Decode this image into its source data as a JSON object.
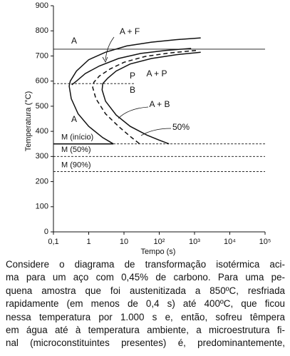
{
  "chart_data": {
    "type": "line",
    "xscale": "log",
    "xlabel": "Tempo (s)",
    "ylabel": "Temperatura (°C)",
    "xlim": [
      0.1,
      100000
    ],
    "ylim": [
      0,
      900
    ],
    "xticks": [
      {
        "value": 0.1,
        "label": "0,1"
      },
      1,
      10,
      {
        "value": 100,
        "label": "10²"
      },
      {
        "value": 1000,
        "label": "10³"
      },
      {
        "value": 10000,
        "label": "10⁴"
      },
      {
        "value": 100000,
        "label": "10⁵"
      }
    ],
    "yticks": [
      0,
      100,
      200,
      300,
      400,
      500,
      600,
      700,
      800,
      900
    ],
    "color": "#111111",
    "series": [
      {
        "style": "solid",
        "x": [
          1500,
          300,
          60,
          12,
          3,
          1,
          0.45,
          0.3,
          0.28,
          0.32,
          0.5,
          1,
          2.5,
          5
        ],
        "values": [
          772,
          765,
          755,
          740,
          715,
          685,
          640,
          600,
          580,
          530,
          470,
          420,
          375,
          350
        ]
      },
      {
        "style": "solid",
        "x": [
          800,
          150,
          30,
          7,
          2,
          0.8,
          0.45,
          0.33
        ],
        "values": [
          730,
          722,
          710,
          690,
          660,
          630,
          600,
          585
        ]
      },
      {
        "style": "dashed",
        "x": [
          1100,
          200,
          40,
          10,
          4,
          2,
          1.4,
          1.3,
          1.6,
          3,
          7,
          15,
          28
        ],
        "values": [
          722,
          712,
          698,
          675,
          648,
          620,
          595,
          575,
          530,
          470,
          420,
          380,
          350
        ]
      },
      {
        "style": "solid",
        "x": [
          1500,
          300,
          60,
          15,
          6,
          3.5,
          2.5,
          2.4,
          3,
          6,
          15,
          45,
          100,
          190
        ],
        "values": [
          715,
          705,
          690,
          668,
          640,
          612,
          590,
          565,
          520,
          465,
          420,
          385,
          365,
          350
        ]
      }
    ],
    "hlines": [
      {
        "value": 727,
        "style": "solid"
      },
      {
        "value": 590,
        "style": "dashed"
      },
      {
        "value": 350,
        "style": "dashed",
        "label": "M (início)"
      },
      {
        "value": 300,
        "style": "dashed",
        "label": "M (50%)"
      },
      {
        "value": 240,
        "style": "dashed",
        "label": "M (90%)"
      }
    ],
    "ms_solid_to": 5,
    "annotations": [
      "A",
      "A + F",
      "P",
      "A + P",
      "B",
      "A + B",
      "50%",
      "A"
    ]
  },
  "question": {
    "lines": [
      "Considere o diagrama de transformação isotérmica aci-",
      "ma para um aço com 0,45% de carbono. Para uma pe-",
      "quena amostra que foi austenitizada a 850ºC, resfriada",
      "rapidamente (em menos de 0,4 s) até 400ºC, que ficou",
      "nessa temperatura por 1.000 s e, então, sofreu têmpera",
      "em água até à temperatura ambiente, a microestrutura fi-",
      "nal (microconstituintes presentes) é, predominantemente,"
    ]
  }
}
